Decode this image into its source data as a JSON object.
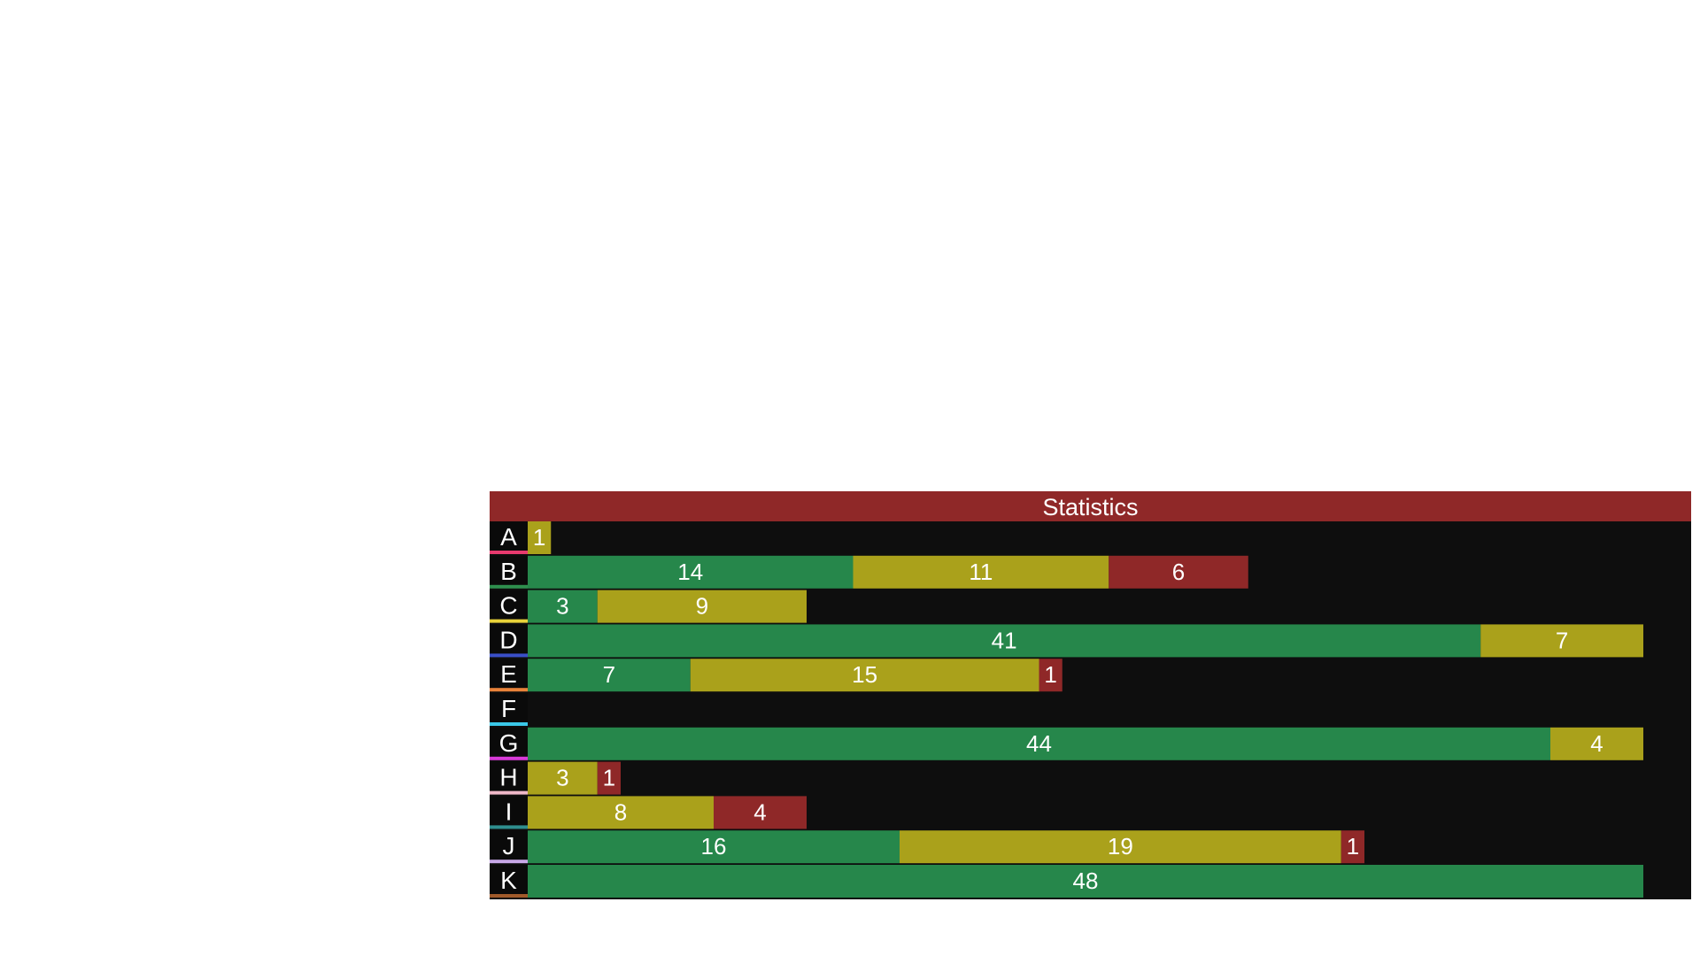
{
  "chart_data": {
    "type": "bar",
    "orientation": "horizontal",
    "stacked": true,
    "title": "Statistics",
    "categories": [
      "A",
      "B",
      "C",
      "D",
      "E",
      "F",
      "G",
      "H",
      "I",
      "J",
      "K"
    ],
    "category_colors": [
      "#e83a6e",
      "#2f8f4e",
      "#e8d23a",
      "#3a4fc8",
      "#e8823a",
      "#3ac8e8",
      "#d83ad8",
      "#f0b8c8",
      "#2f8f8f",
      "#c8a8e8",
      "#a05a2a"
    ],
    "series": [
      {
        "color": "#26874b",
        "values": [
          0,
          14,
          3,
          41,
          7,
          0,
          44,
          0,
          0,
          16,
          48
        ]
      },
      {
        "color": "#aaa11b",
        "values": [
          1,
          11,
          9,
          7,
          15,
          0,
          4,
          3,
          8,
          19,
          0
        ]
      },
      {
        "color": "#8f2828",
        "values": [
          0,
          6,
          0,
          0,
          1,
          0,
          0,
          1,
          4,
          1,
          0
        ]
      }
    ],
    "xlim": [
      0,
      48
    ],
    "grid": false,
    "legend": "none"
  },
  "colors": {
    "header_bg": "#8f2828",
    "panel_bg": "#0e0e0e",
    "label_bg": "#0a0a0a",
    "text": "#ffffff"
  }
}
